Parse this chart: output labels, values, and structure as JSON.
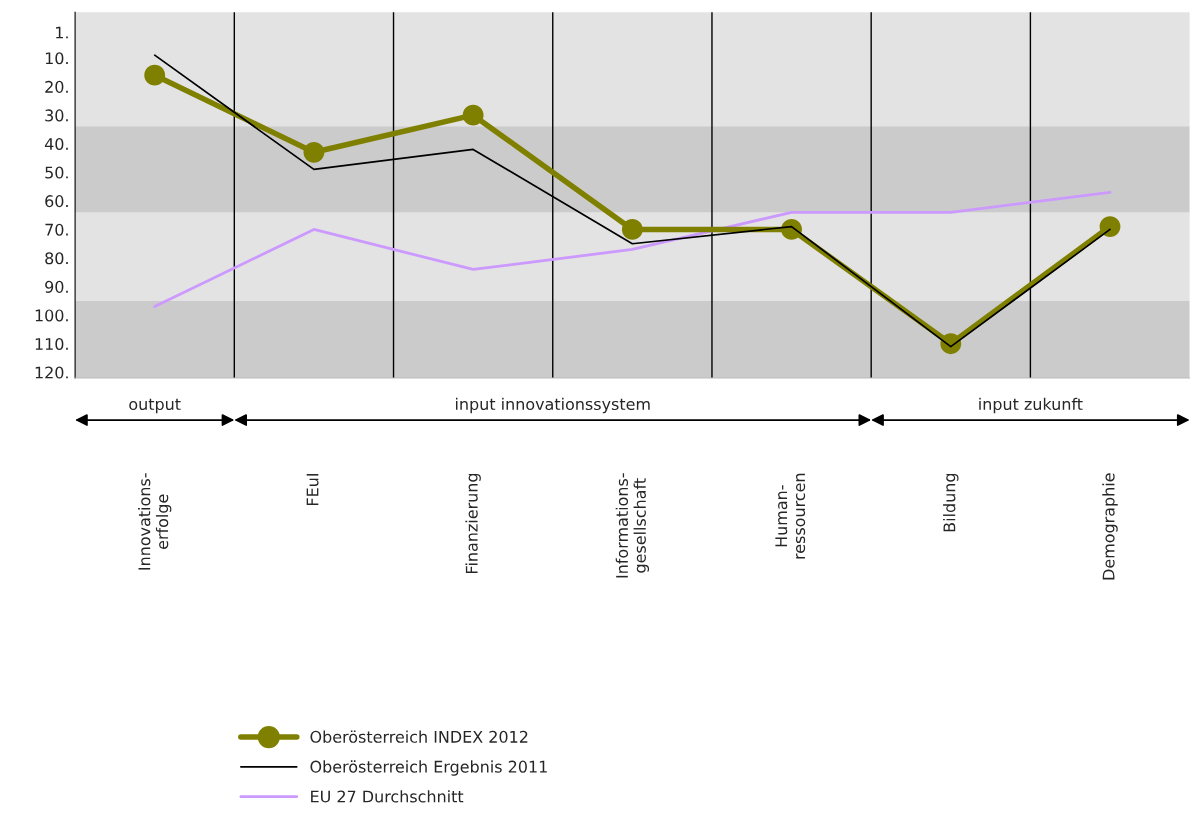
{
  "chart_data": {
    "type": "line",
    "categories": [
      "Innovations-\nerfolge",
      "FEuI",
      "Finanzierung",
      "Informations-\ngesellschaft",
      "Human-\nressourcen",
      "Bildung",
      "Demographie"
    ],
    "series": [
      {
        "name": "Oberösterreich INDEX 2012",
        "color": "#808000",
        "marker": "circle",
        "values": [
          16,
          43,
          30,
          70,
          70,
          110,
          69
        ]
      },
      {
        "name": "Oberösterreich Ergebnis 2011",
        "color": "#000000",
        "values": [
          9,
          49,
          42,
          75,
          69,
          111,
          70
        ]
      },
      {
        "name": "EU 27 Durchschnitt",
        "color": "#cc99ff",
        "values": [
          97,
          70,
          84,
          77,
          64,
          64,
          57
        ]
      }
    ],
    "ylim": [
      122,
      -6
    ],
    "yticks": [
      {
        "value": 1,
        "label": "1."
      },
      {
        "value": 10,
        "label": "10."
      },
      {
        "value": 20,
        "label": "20."
      },
      {
        "value": 30,
        "label": "30."
      },
      {
        "value": 40,
        "label": "40."
      },
      {
        "value": 50,
        "label": "50."
      },
      {
        "value": 60,
        "label": "60."
      },
      {
        "value": 70,
        "label": "70."
      },
      {
        "value": 80,
        "label": "80."
      },
      {
        "value": 90,
        "label": "90."
      },
      {
        "value": 100,
        "label": "100."
      },
      {
        "value": 110,
        "label": "110."
      },
      {
        "value": 120,
        "label": "120."
      }
    ],
    "bands": [
      {
        "axis": "y",
        "from": 34,
        "to": 64,
        "color": "#cbcbcb"
      },
      {
        "axis": "y",
        "from": 95,
        "to": 122,
        "color": "#cbcbcb"
      }
    ],
    "annotations": [
      "output",
      "input innovationssystem",
      "input zukunft"
    ],
    "grid": "x",
    "legend": "bottom"
  }
}
